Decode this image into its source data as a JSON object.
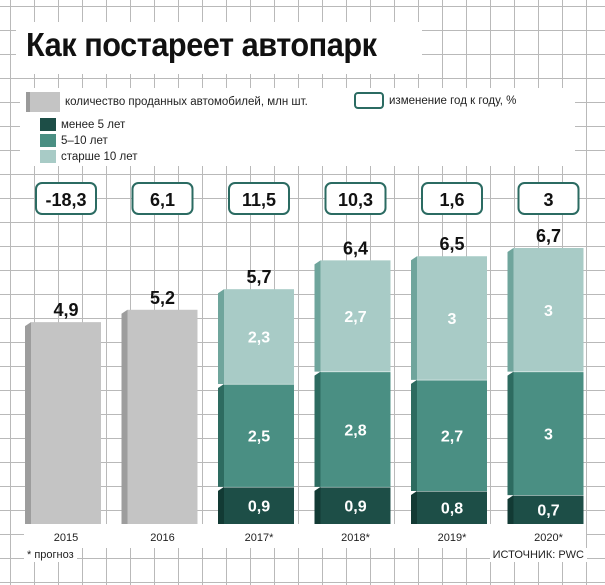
{
  "header": {
    "title": "Как постареет автопарк"
  },
  "legend": {
    "sales_label": "количество проданных автомобилей, млн шт.",
    "change_label": "изменение год к году, %",
    "age_under5_label": "менее 5 лет",
    "age_5to10_label": "5–10 лет",
    "age_over10_label": "старше 10 лет"
  },
  "footer": {
    "note": "* прогноз",
    "source": "ИСТОЧНИК: PWC"
  },
  "colors": {
    "total_gray": "#c4c4c4",
    "under5": "#1d4e47",
    "from5to10": "#4a8f83",
    "over10": "#a8cbc6"
  },
  "chart_data": {
    "type": "bar",
    "title": "Как постареет автопарк",
    "categories": [
      "2015",
      "2016",
      "2017*",
      "2018*",
      "2019*",
      "2020*"
    ],
    "totals": [
      4.9,
      5.2,
      5.7,
      6.4,
      6.5,
      6.7
    ],
    "total_labels": [
      "4,9",
      "5,2",
      "5,7",
      "6,4",
      "6,5",
      "6,7"
    ],
    "yoy_change_labels": [
      "-18,3",
      "6,1",
      "11,5",
      "10,3",
      "1,6",
      "3"
    ],
    "series": [
      {
        "name": "менее 5 лет",
        "values": [
          null,
          null,
          0.9,
          0.9,
          0.8,
          0.7
        ],
        "labels": [
          "",
          "",
          "0,9",
          "0,9",
          "0,8",
          "0,7"
        ]
      },
      {
        "name": "5–10 лет",
        "values": [
          null,
          null,
          2.5,
          2.8,
          2.7,
          3
        ],
        "labels": [
          "",
          "",
          "2,5",
          "2,8",
          "2,7",
          "3"
        ]
      },
      {
        "name": "старше 10 лет",
        "values": [
          null,
          null,
          2.3,
          2.7,
          3,
          3
        ],
        "labels": [
          "",
          "",
          "2,3",
          "2,7",
          "3",
          "3"
        ]
      }
    ],
    "ylim": [
      0,
      7
    ],
    "grid": true,
    "legend_position": "top"
  }
}
